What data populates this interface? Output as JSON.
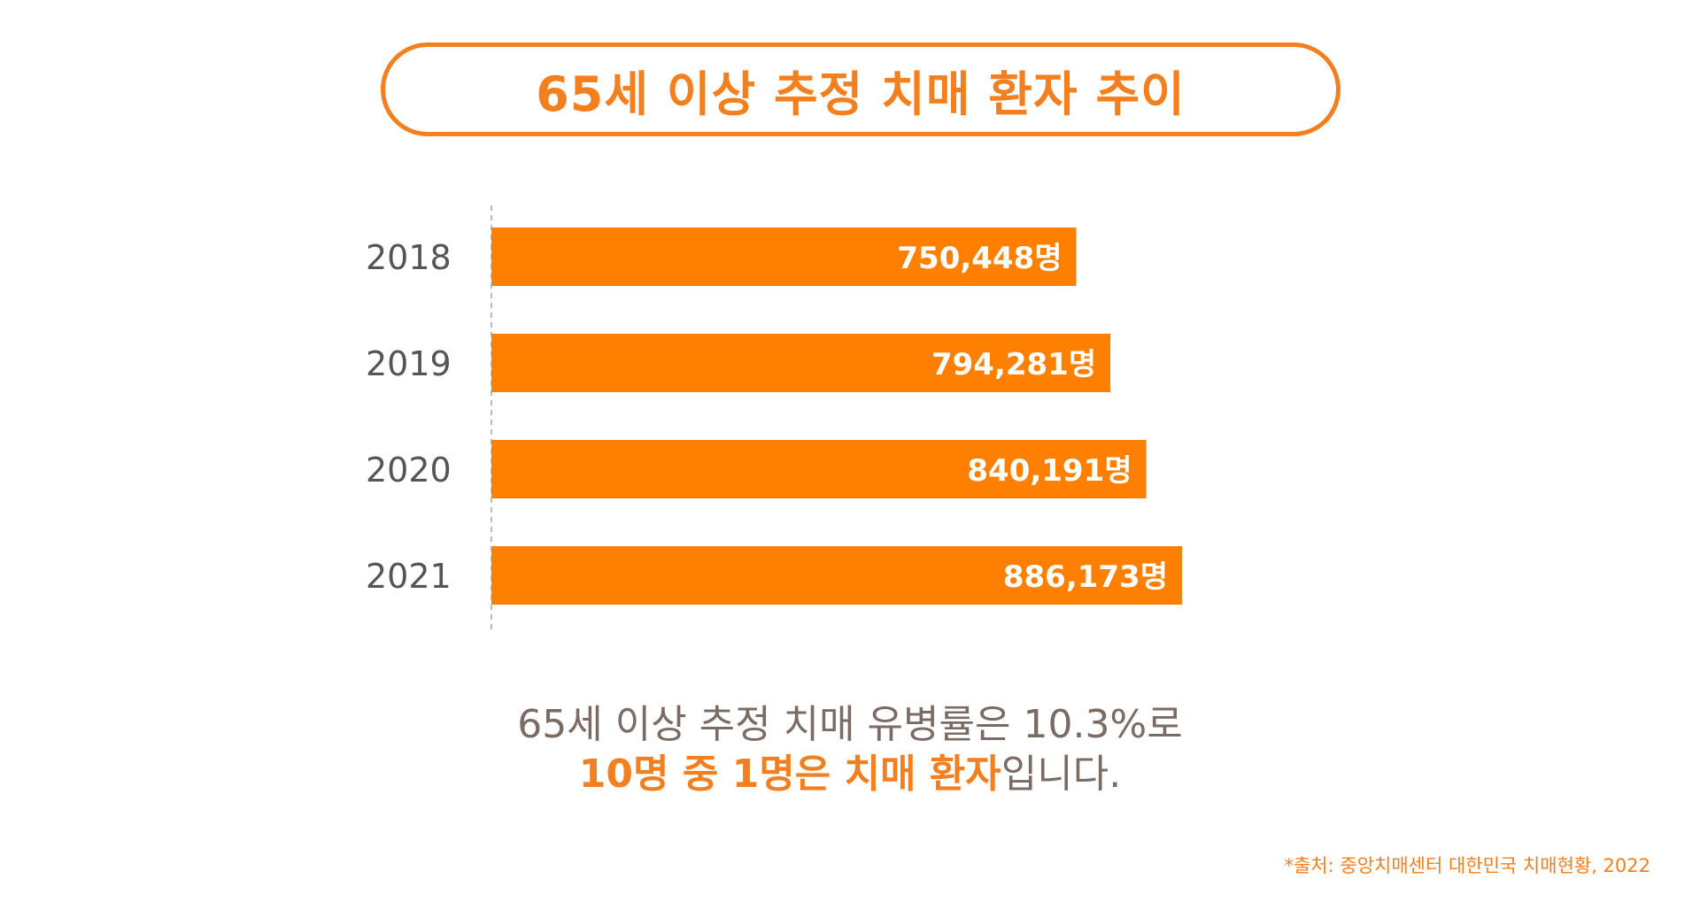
{
  "title": "65세 이상 추정 치매 환자 추이",
  "colors": {
    "accent": "#F37F1F",
    "bar": "#FF7F00",
    "text": "#555555",
    "summary_text": "#7a6c64",
    "axis": "#bbbbbb"
  },
  "chart_data": {
    "type": "bar",
    "orientation": "horizontal",
    "categories": [
      "2018",
      "2019",
      "2020",
      "2021"
    ],
    "values": [
      750448,
      794281,
      840191,
      886173
    ],
    "data_labels": [
      "750,448명",
      "794,281명",
      "840,191명",
      "886,173명"
    ],
    "unit": "명",
    "title": "65세 이상 추정 치매 환자 추이",
    "xlabel": "",
    "ylabel": "",
    "xlim": [
      0,
      1000000
    ],
    "grid": false
  },
  "summary": {
    "line1": "65세 이상 추정 치매 유병률은 10.3%로",
    "line2_highlight": "10명 중 1명은 치매 환자",
    "line2_rest": "입니다."
  },
  "source": "*출처: 중앙치매센터 대한민국 치매현황, 2022"
}
